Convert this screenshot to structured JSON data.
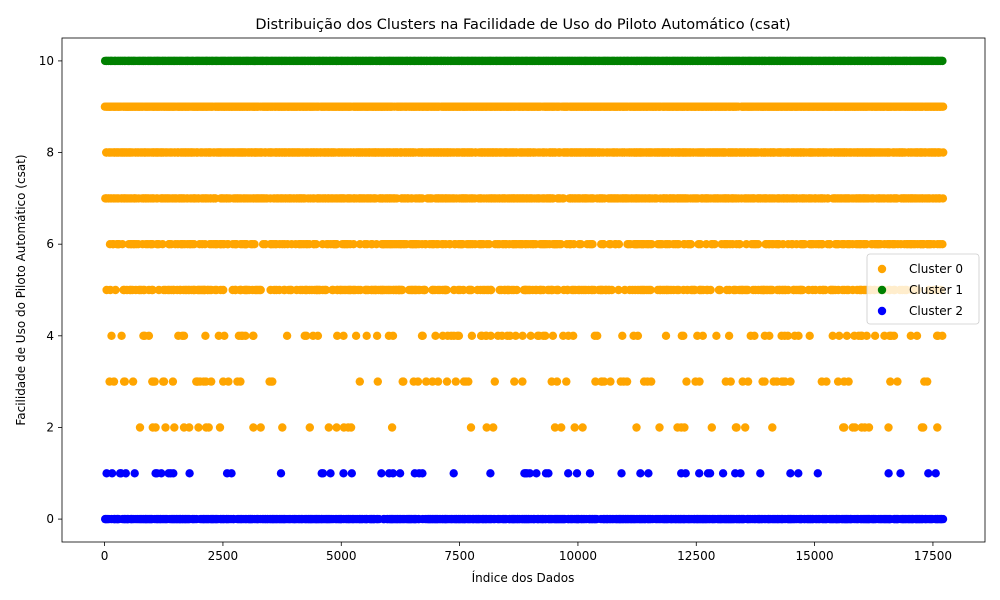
{
  "chart_data": {
    "type": "scatter",
    "title": "Distribuição dos Clusters na Facilidade de Uso do Piloto Automático (csat)",
    "xlabel": "Índice dos Dados",
    "ylabel": "Facilidade de Uso do Piloto Automático (csat)",
    "xlim": [
      -900,
      18600
    ],
    "ylim": [
      -0.5,
      10.5
    ],
    "xticks": [
      0,
      2500,
      5000,
      7500,
      10000,
      12500,
      15000,
      17500
    ],
    "xtick_labels": [
      "0",
      "2500",
      "5000",
      "7500",
      "10000",
      "12500",
      "15000",
      "17500"
    ],
    "yticks": [
      0,
      2,
      4,
      6,
      8,
      10
    ],
    "ytick_labels": [
      "0",
      "2",
      "4",
      "6",
      "8",
      "10"
    ],
    "grid": false,
    "legend_position": "center-right",
    "series": [
      {
        "name": "Cluster 0",
        "color": "#ffa500",
        "levels": [
          {
            "y": 9,
            "density": 0.95
          },
          {
            "y": 8,
            "density": 0.85
          },
          {
            "y": 7,
            "density": 0.7
          },
          {
            "y": 6,
            "density": 0.4
          },
          {
            "y": 5,
            "density": 0.4
          },
          {
            "y": 4,
            "density": 0.12
          },
          {
            "y": 3,
            "density": 0.07
          },
          {
            "y": 2,
            "density": 0.05
          }
        ],
        "x_range": [
          0,
          17700
        ]
      },
      {
        "name": "Cluster 1",
        "color": "#008000",
        "levels": [
          {
            "y": 10,
            "density": 1.0
          }
        ],
        "x_range": [
          0,
          17700
        ]
      },
      {
        "name": "Cluster 2",
        "color": "#0000ff",
        "levels": [
          {
            "y": 0,
            "density": 0.8
          },
          {
            "y": 1,
            "density": 0.06
          }
        ],
        "x_range": [
          0,
          17700
        ]
      }
    ]
  }
}
